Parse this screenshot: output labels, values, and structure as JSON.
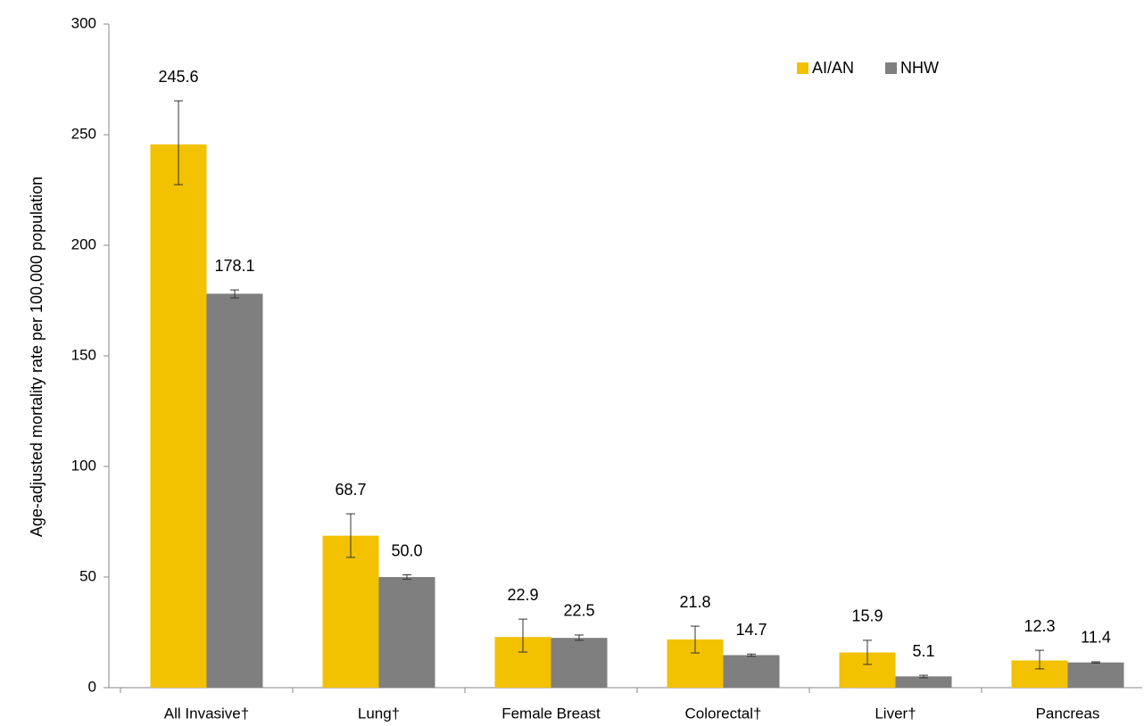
{
  "chart_data": {
    "type": "bar",
    "y_label": "Age-adjusted mortality rate per 100,000 population",
    "categories": [
      "All Invasive†",
      "Lung†",
      "Female Breast",
      "Colorectal†",
      "Liver†",
      "Pancreas"
    ],
    "series": [
      {
        "name": "AI/AN",
        "color": "#f2c100",
        "values": [
          245.6,
          68.7,
          22.9,
          21.8,
          15.9,
          12.3
        ],
        "value_labels": [
          "245.6",
          "68.7",
          "22.9",
          "21.8",
          "15.9",
          "12.3"
        ],
        "ci_low": [
          227.4,
          58.9,
          16.1,
          15.7,
          10.5,
          8.5
        ],
        "ci_high": [
          265.3,
          78.6,
          31.0,
          27.8,
          21.4,
          16.9
        ]
      },
      {
        "name": "NHW",
        "color": "#7f7f7f",
        "values": [
          178.1,
          50.0,
          22.5,
          14.7,
          5.1,
          11.4
        ],
        "value_labels": [
          "178.1",
          "50.0",
          "22.5",
          "14.7",
          "5.1",
          "11.4"
        ],
        "ci_low": [
          176.2,
          49.0,
          21.4,
          14.2,
          4.5,
          11.1
        ],
        "ci_high": [
          179.8,
          51.0,
          23.8,
          15.2,
          5.6,
          11.7
        ]
      }
    ],
    "ylim": [
      0,
      300
    ],
    "yticks": [
      0,
      50,
      100,
      150,
      200,
      250,
      300
    ],
    "grid": false,
    "legend": "top-right"
  }
}
